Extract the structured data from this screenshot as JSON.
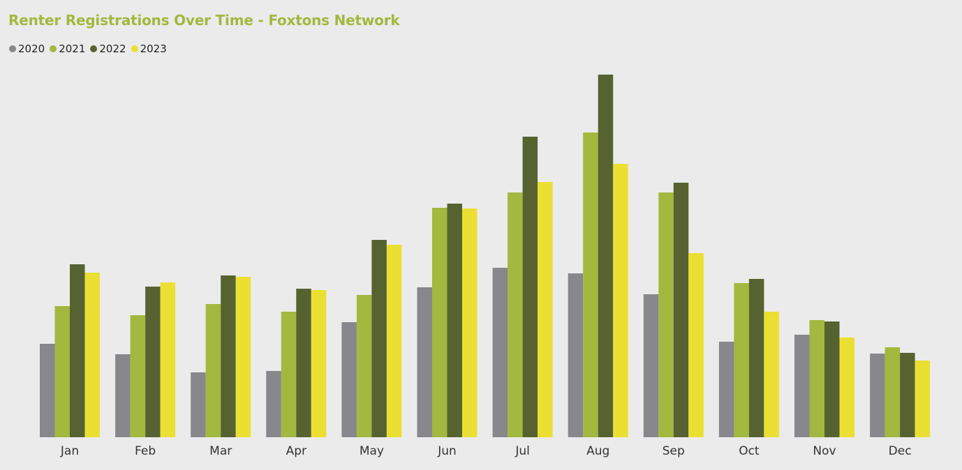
{
  "chart_data": {
    "type": "bar",
    "title": "Renter Registrations Over Time - Foxtons Network",
    "xlabel": "",
    "ylabel": "",
    "legend_position": "top-left",
    "grid": false,
    "categories": [
      "Jan",
      "Feb",
      "Mar",
      "Apr",
      "May",
      "Jun",
      "Jul",
      "Aug",
      "Sep",
      "Oct",
      "Nov",
      "Dec"
    ],
    "series": [
      {
        "name": "2020",
        "color": "#87878c",
        "values": [
          134,
          119,
          93,
          95,
          165,
          215,
          243,
          235,
          205,
          137,
          147,
          120
        ]
      },
      {
        "name": "2021",
        "color": "#a2b83f",
        "values": [
          188,
          175,
          191,
          180,
          204,
          329,
          351,
          437,
          351,
          221,
          168,
          129
        ]
      },
      {
        "name": "2022",
        "color": "#566330",
        "values": [
          248,
          216,
          232,
          213,
          283,
          335,
          431,
          520,
          365,
          227,
          166,
          121
        ]
      },
      {
        "name": "2023",
        "color": "#ebdf33",
        "values": [
          236,
          222,
          230,
          211,
          276,
          328,
          366,
          392,
          264,
          180,
          143,
          110
        ]
      }
    ],
    "ylim": [
      0,
      520
    ]
  }
}
